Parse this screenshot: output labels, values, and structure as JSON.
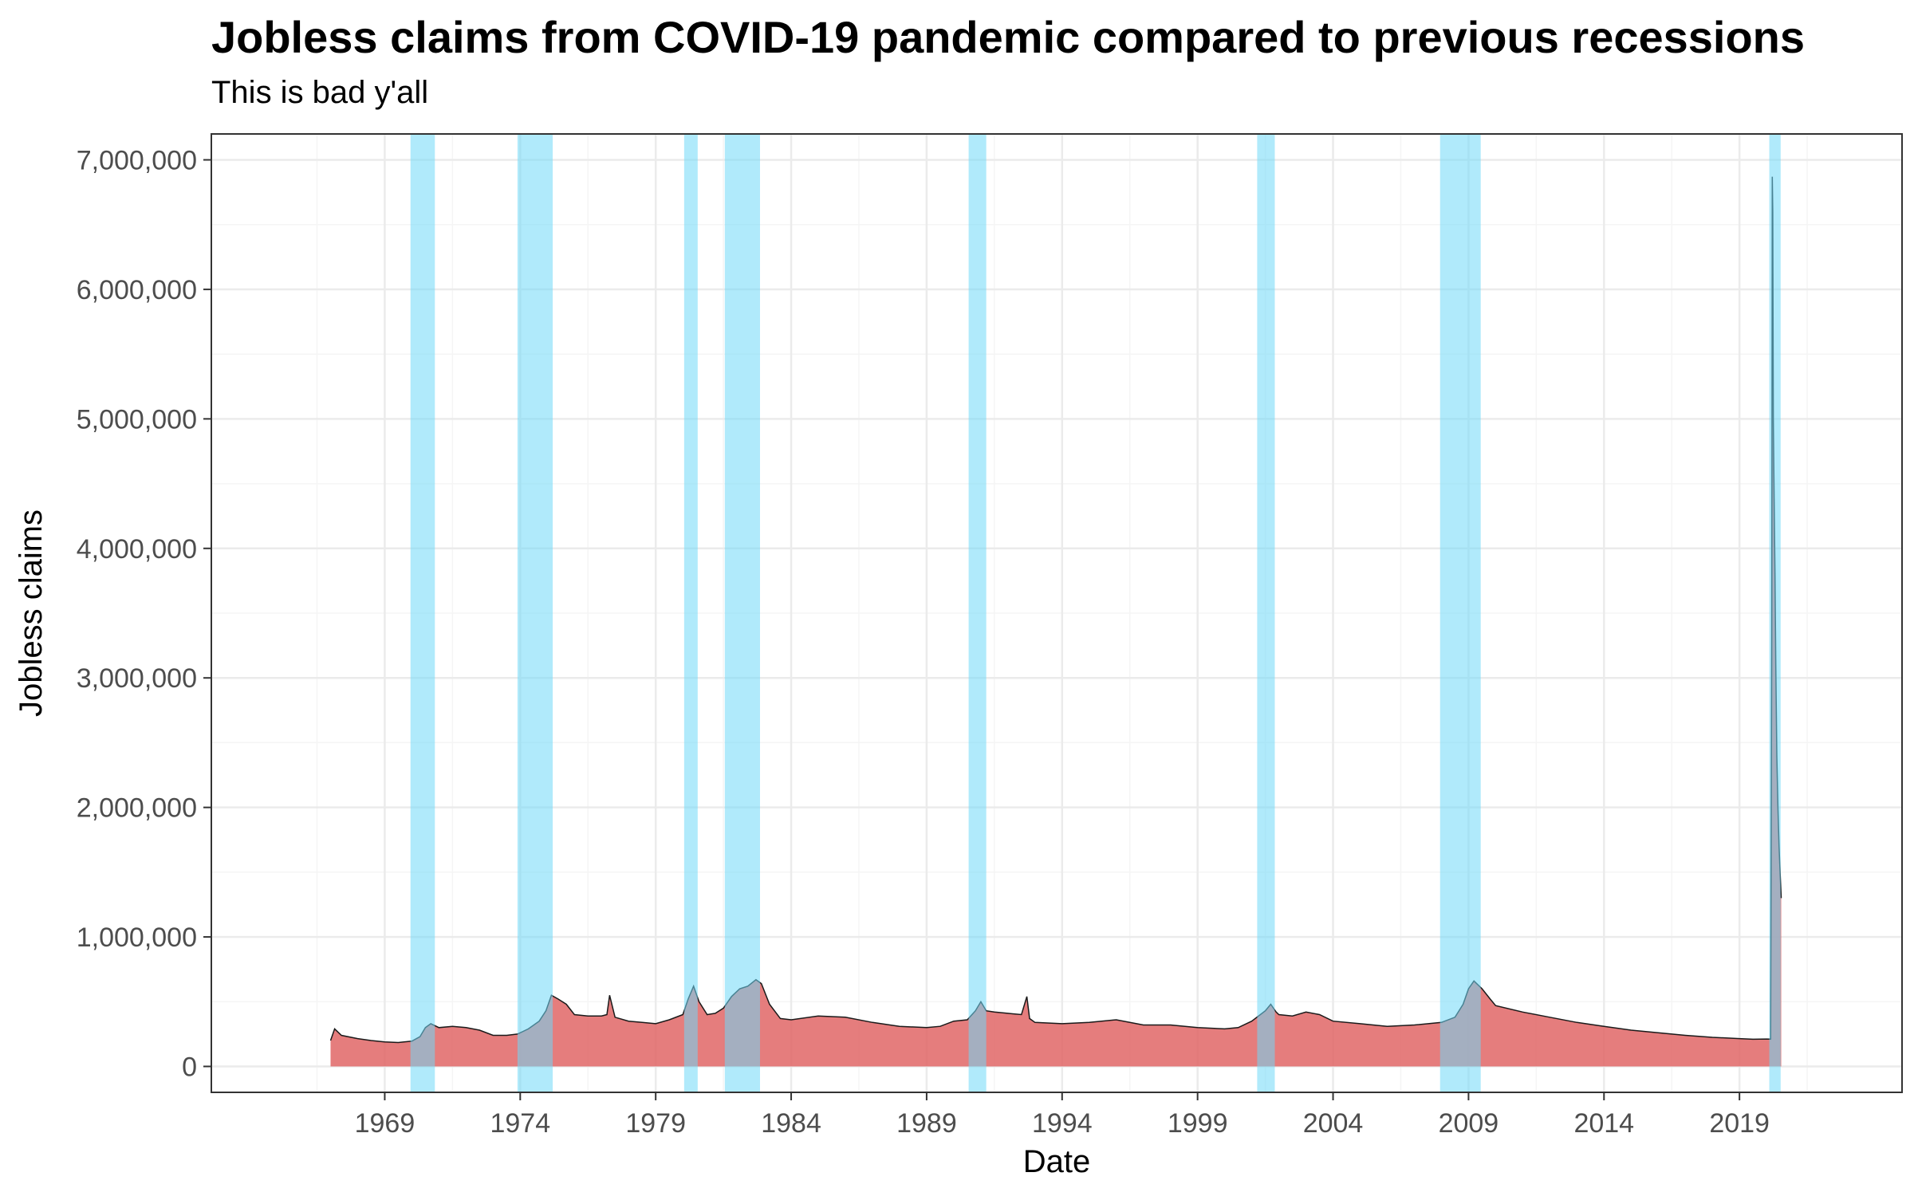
{
  "chart_data": {
    "type": "area",
    "title": "Jobless claims from COVID-19 pandemic compared to previous recessions",
    "subtitle": "This is bad y'all",
    "xlabel": "Date",
    "ylabel": "Jobless claims",
    "xlim": [
      1962.6,
      2025.0
    ],
    "ylim": [
      -200000,
      7200000
    ],
    "x_ticks": [
      "1969",
      "1974",
      "1979",
      "1984",
      "1989",
      "1994",
      "1999",
      "2004",
      "2009",
      "2014",
      "2019"
    ],
    "y_ticks": [
      "0",
      "1,000,000",
      "2,000,000",
      "3,000,000",
      "4,000,000",
      "5,000,000",
      "6,000,000",
      "7,000,000"
    ],
    "grid": true,
    "legend": "none",
    "series": [
      {
        "x": [
          1967.0,
          1967.15,
          1967.4,
          1968.0,
          1968.5,
          1969.0,
          1969.5,
          1970.0,
          1970.3,
          1970.5,
          1970.7,
          1971.0,
          1971.5,
          1972.0,
          1972.5,
          1973.0,
          1973.5,
          1973.9,
          1974.3,
          1974.7,
          1974.95,
          1975.15,
          1975.4,
          1975.7,
          1976.0,
          1976.5,
          1977.0,
          1977.2,
          1977.3,
          1977.5,
          1978.0,
          1978.5,
          1979.0,
          1979.5,
          1980.0,
          1980.2,
          1980.4,
          1980.6,
          1980.9,
          1981.2,
          1981.5,
          1981.8,
          1982.1,
          1982.4,
          1982.7,
          1982.9,
          1983.2,
          1983.6,
          1984.0,
          1985.0,
          1986.0,
          1987.0,
          1988.0,
          1989.0,
          1989.5,
          1990.0,
          1990.5,
          1990.8,
          1991.0,
          1991.2,
          1991.5,
          1992.0,
          1992.5,
          1992.7,
          1992.8,
          1993.0,
          1994.0,
          1995.0,
          1996.0,
          1997.0,
          1998.0,
          1999.0,
          2000.0,
          2000.5,
          2001.0,
          2001.5,
          2001.7,
          2001.9,
          2002.0,
          2002.5,
          2003.0,
          2003.5,
          2004.0,
          2005.0,
          2006.0,
          2007.0,
          2008.0,
          2008.5,
          2008.8,
          2009.0,
          2009.2,
          2009.5,
          2009.8,
          2010.0,
          2011.0,
          2012.0,
          2013.0,
          2014.0,
          2015.0,
          2016.0,
          2017.0,
          2018.0,
          2019.0,
          2019.5,
          2020.0,
          2020.15,
          2020.19,
          2020.21,
          2020.23,
          2020.25,
          2020.28,
          2020.31,
          2020.34,
          2020.38,
          2020.42,
          2020.46,
          2020.5,
          2020.54
        ],
        "values": [
          200000,
          290000,
          240000,
          215000,
          200000,
          190000,
          185000,
          195000,
          230000,
          300000,
          330000,
          300000,
          310000,
          300000,
          280000,
          240000,
          240000,
          250000,
          290000,
          350000,
          430000,
          550000,
          520000,
          480000,
          400000,
          390000,
          390000,
          400000,
          550000,
          380000,
          350000,
          340000,
          330000,
          360000,
          400000,
          520000,
          620000,
          500000,
          400000,
          410000,
          450000,
          540000,
          600000,
          620000,
          670000,
          640000,
          480000,
          370000,
          360000,
          390000,
          380000,
          340000,
          310000,
          300000,
          310000,
          350000,
          360000,
          430000,
          500000,
          430000,
          420000,
          410000,
          400000,
          540000,
          370000,
          340000,
          330000,
          340000,
          360000,
          320000,
          320000,
          300000,
          290000,
          300000,
          350000,
          430000,
          480000,
          420000,
          400000,
          390000,
          420000,
          400000,
          350000,
          330000,
          310000,
          320000,
          340000,
          380000,
          480000,
          600000,
          660000,
          600000,
          520000,
          470000,
          420000,
          380000,
          340000,
          310000,
          280000,
          260000,
          240000,
          225000,
          215000,
          210000,
          212000,
          211000,
          3300000,
          6870000,
          6600000,
          5000000,
          4400000,
          3800000,
          3100000,
          2400000,
          2000000,
          1700000,
          1500000,
          1300000
        ]
      }
    ],
    "recessions": [
      {
        "start": 1969.95,
        "end": 1970.85
      },
      {
        "start": 1973.9,
        "end": 1975.2
      },
      {
        "start": 1980.05,
        "end": 1980.55
      },
      {
        "start": 1981.55,
        "end": 1982.85
      },
      {
        "start": 1990.55,
        "end": 1991.2
      },
      {
        "start": 2001.2,
        "end": 2001.85
      },
      {
        "start": 2007.95,
        "end": 2009.45
      },
      {
        "start": 2020.1,
        "end": 2020.52
      }
    ],
    "colors": {
      "area_fill": "#e06666",
      "line": "#1a1a1a",
      "recession_band": "#6fd8f7",
      "grid_major": "#ebebeb",
      "grid_minor": "#f5f5f5",
      "panel_border": "#333333"
    }
  }
}
